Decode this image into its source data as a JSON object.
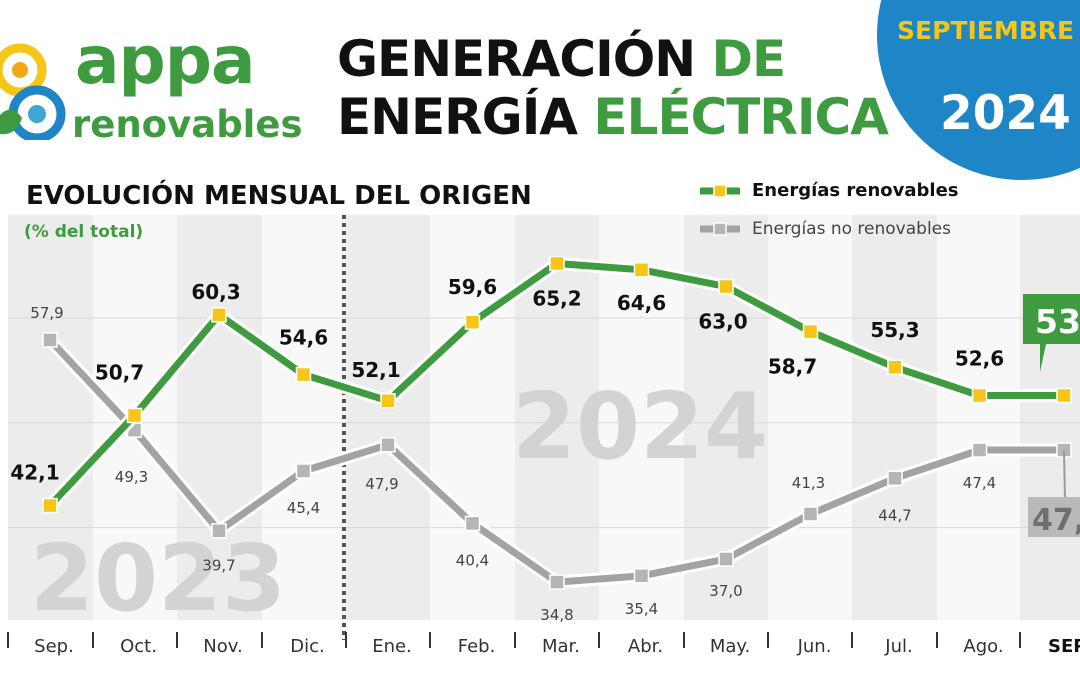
{
  "header": {
    "logo_main": "appa",
    "logo_sub": "renovables",
    "title_line1_a": "GENERACIÓN",
    "title_line1_b": "DE",
    "title_line2_a": "ENERGÍA",
    "title_line2_b": "ELÉCTRICA",
    "badge_month": "SEPTIEMBRE",
    "badge_year": "2024"
  },
  "colors": {
    "green": "#3f9b3f",
    "gray": "#a3a3a3",
    "marker": "#f5c518",
    "blue": "#1e86c6"
  },
  "chart_data": {
    "type": "line",
    "title": "EVOLUCIÓN MENSUAL DEL ORIGEN",
    "unit_label": "(% del total)",
    "categories": [
      "Sep.",
      "Oct.",
      "Nov.",
      "Dic.",
      "Ene.",
      "Feb.",
      "Mar.",
      "Abr.",
      "May.",
      "Jun.",
      "Jul.",
      "Ago.",
      "SEP."
    ],
    "year_labels": [
      "2023",
      "2024"
    ],
    "series": [
      {
        "name": "Energías renovables",
        "values": [
          42.1,
          50.7,
          60.3,
          54.6,
          52.1,
          59.6,
          65.2,
          64.6,
          63.0,
          58.7,
          55.3,
          52.6,
          52.6
        ],
        "labels": [
          "42,1",
          "50,7",
          "60,3",
          "54,6",
          "52,1",
          "59,6",
          "65,2",
          "64,6",
          "63,0",
          "58,7",
          "55,3",
          "52,6",
          "53"
        ]
      },
      {
        "name": "Energías no renovables",
        "values": [
          57.9,
          49.3,
          39.7,
          45.4,
          47.9,
          40.4,
          34.8,
          35.4,
          37.0,
          41.3,
          44.7,
          47.4,
          47.4
        ],
        "labels": [
          "57,9",
          "49,3",
          "39,7",
          "45,4",
          "47,9",
          "40,4",
          "34,8",
          "35,4",
          "37,0",
          "41,3",
          "44,7",
          "47,4",
          "47,"
        ]
      }
    ],
    "ylim": [
      30,
      70
    ],
    "grid": true,
    "legend": "top-right"
  }
}
